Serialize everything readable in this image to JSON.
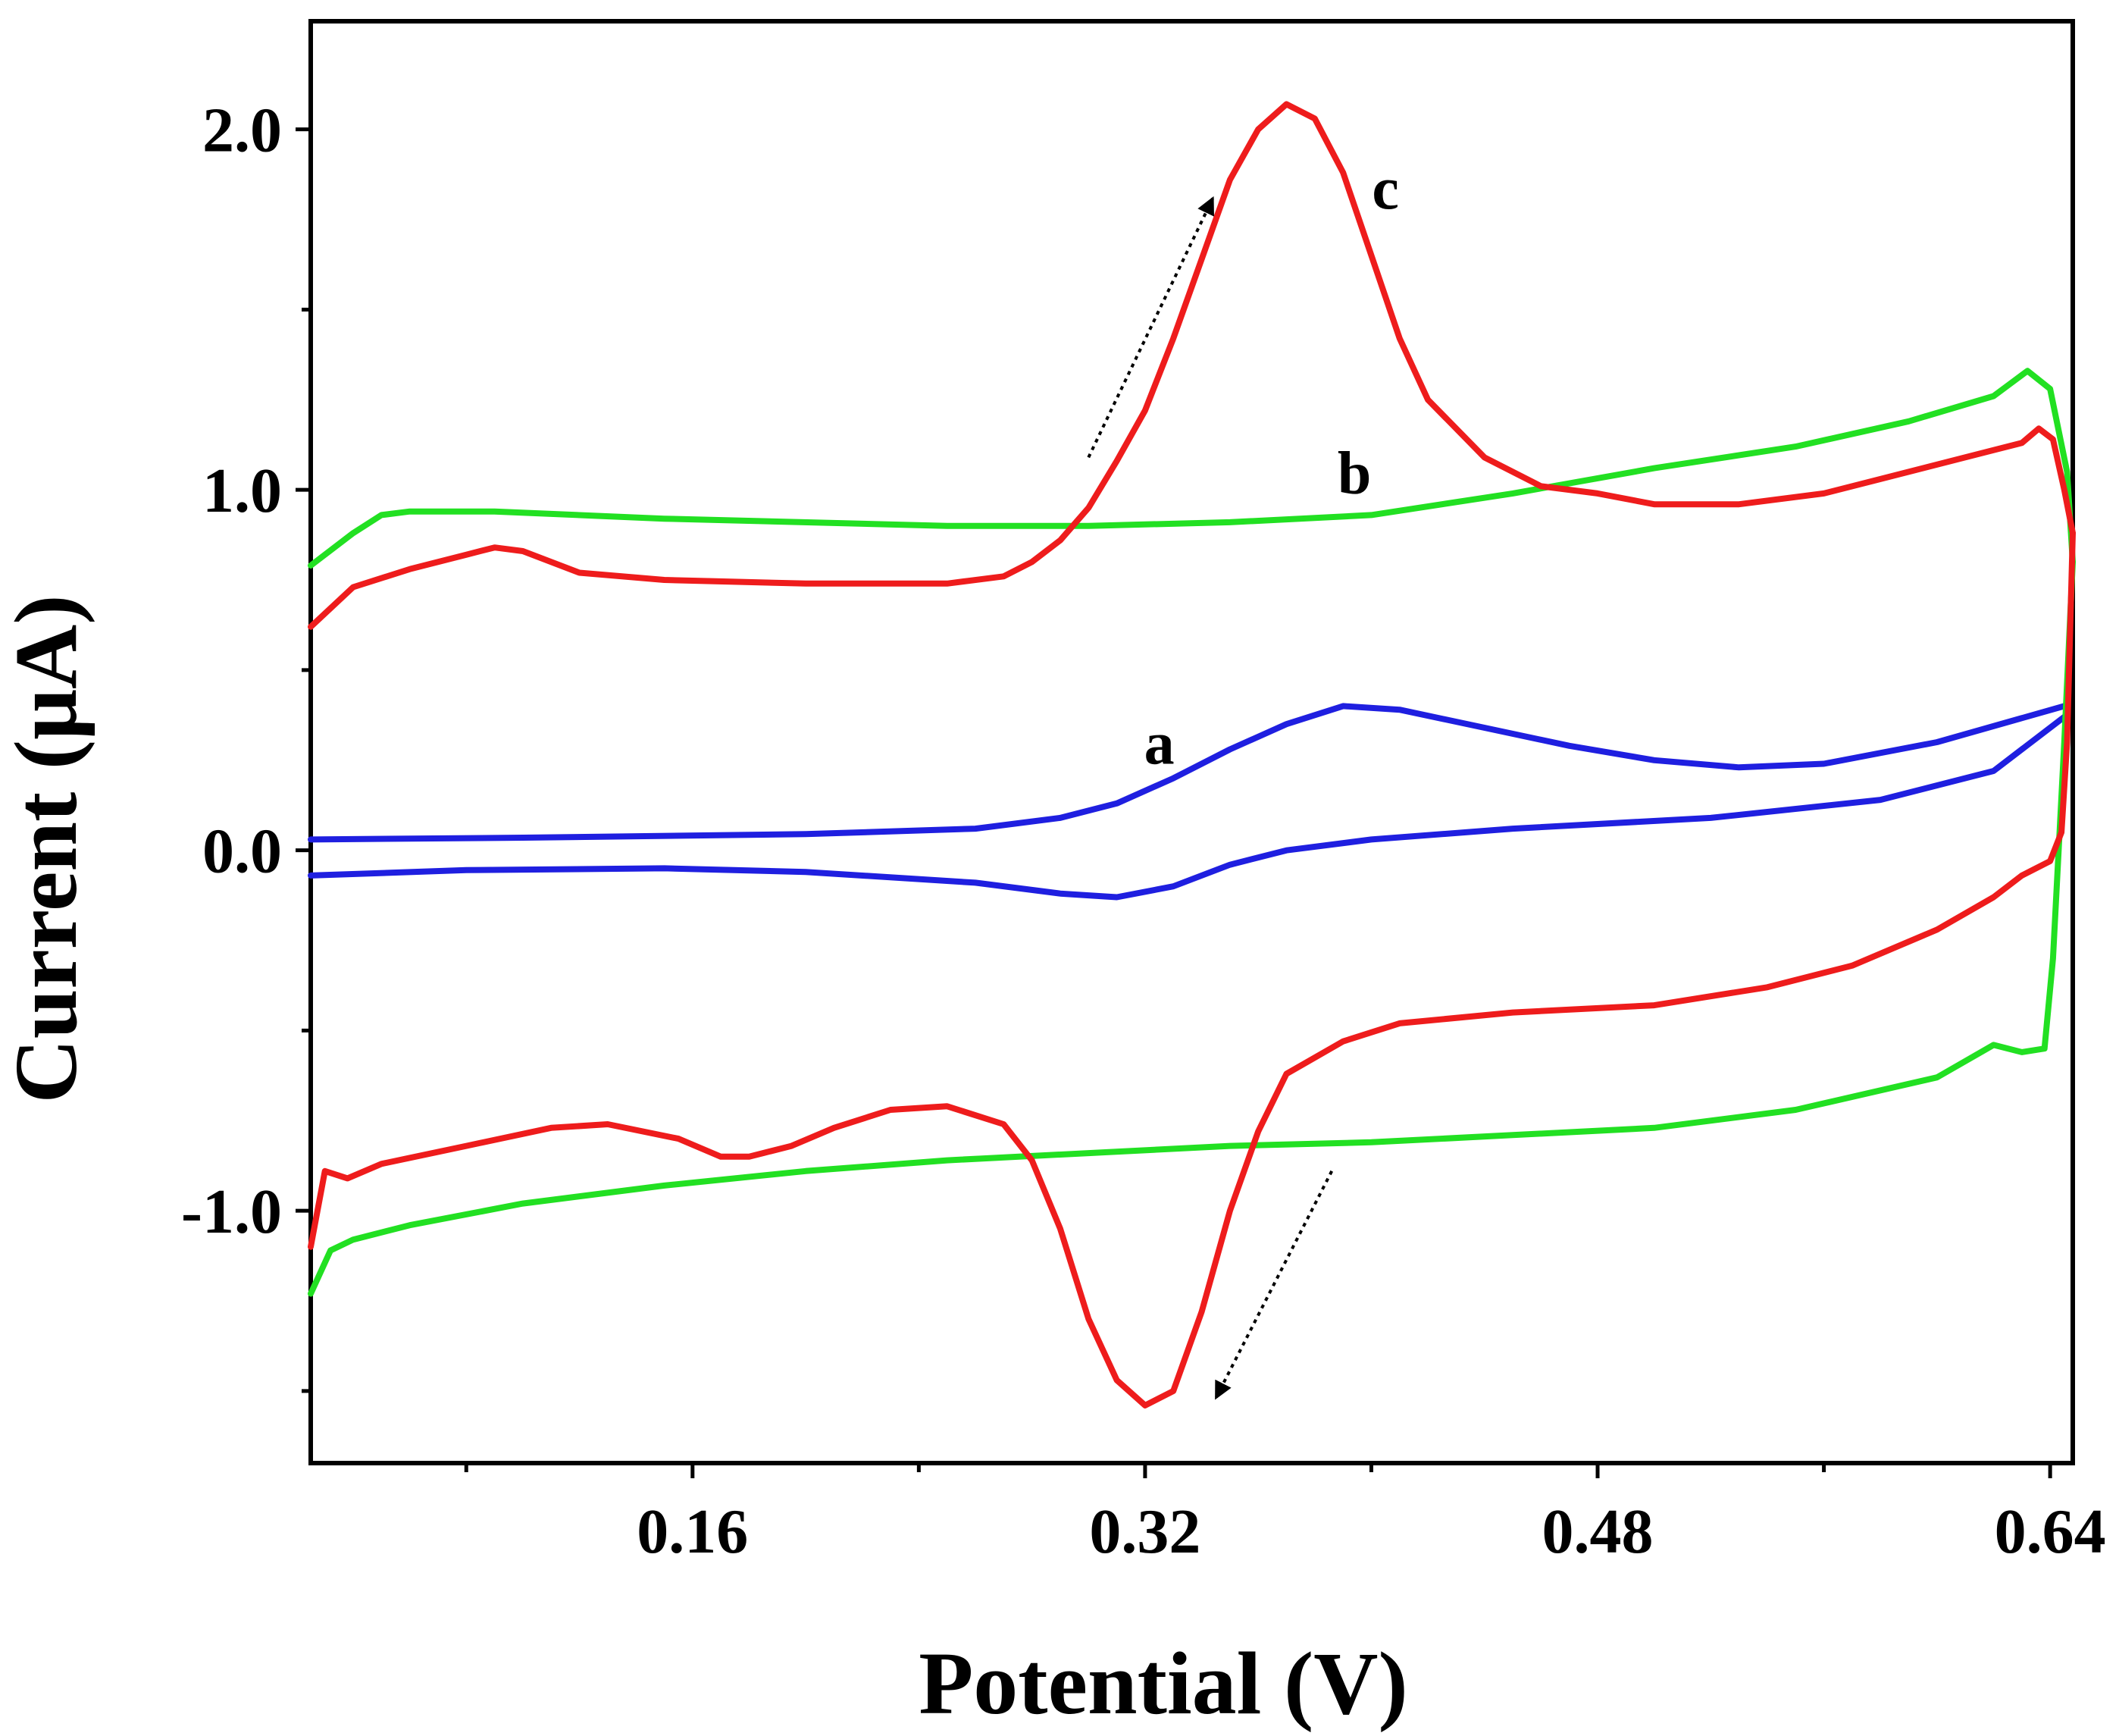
{
  "chart_data": {
    "type": "line",
    "title": "",
    "xlabel": "Potential (V)",
    "ylabel": "Current (μA)",
    "xlim": [
      0.025,
      0.648
    ],
    "ylim": [
      -1.7,
      2.3
    ],
    "x_ticks": [
      0.16,
      0.32,
      0.48,
      0.64
    ],
    "x_tick_labels": [
      "0.16",
      "0.32",
      "0.48",
      "0.64"
    ],
    "x_minor_ticks": [
      0.08,
      0.24,
      0.4,
      0.56
    ],
    "y_ticks": [
      -1.0,
      0.0,
      1.0,
      2.0
    ],
    "y_tick_labels": [
      "-1.0",
      "0.0",
      "1.0",
      "2.0"
    ],
    "y_minor_ticks": [
      -1.5,
      -0.5,
      0.5,
      1.5
    ],
    "grid": false,
    "legend": "none",
    "series": [
      {
        "name": "a",
        "color": "#1f1fe0",
        "forward": [
          [
            0.025,
            0.03
          ],
          [
            0.1,
            0.035
          ],
          [
            0.2,
            0.045
          ],
          [
            0.26,
            0.06
          ],
          [
            0.29,
            0.09
          ],
          [
            0.31,
            0.13
          ],
          [
            0.33,
            0.2
          ],
          [
            0.35,
            0.28
          ],
          [
            0.37,
            0.35
          ],
          [
            0.39,
            0.4
          ],
          [
            0.41,
            0.39
          ],
          [
            0.44,
            0.34
          ],
          [
            0.47,
            0.29
          ],
          [
            0.5,
            0.25
          ],
          [
            0.53,
            0.23
          ],
          [
            0.56,
            0.24
          ],
          [
            0.6,
            0.3
          ],
          [
            0.645,
            0.4
          ]
        ],
        "reverse": [
          [
            0.645,
            0.37
          ],
          [
            0.62,
            0.22
          ],
          [
            0.58,
            0.14
          ],
          [
            0.52,
            0.09
          ],
          [
            0.45,
            0.06
          ],
          [
            0.4,
            0.03
          ],
          [
            0.37,
            0.0
          ],
          [
            0.35,
            -0.04
          ],
          [
            0.33,
            -0.1
          ],
          [
            0.31,
            -0.13
          ],
          [
            0.29,
            -0.12
          ],
          [
            0.26,
            -0.09
          ],
          [
            0.2,
            -0.06
          ],
          [
            0.15,
            -0.05
          ],
          [
            0.08,
            -0.055
          ],
          [
            0.025,
            -0.07
          ]
        ]
      },
      {
        "name": "b",
        "color": "#22e022",
        "forward": [
          [
            0.025,
            0.79
          ],
          [
            0.04,
            0.88
          ],
          [
            0.05,
            0.93
          ],
          [
            0.06,
            0.94
          ],
          [
            0.09,
            0.94
          ],
          [
            0.15,
            0.92
          ],
          [
            0.25,
            0.9
          ],
          [
            0.3,
            0.9
          ],
          [
            0.35,
            0.91
          ],
          [
            0.4,
            0.93
          ],
          [
            0.45,
            0.99
          ],
          [
            0.5,
            1.06
          ],
          [
            0.55,
            1.12
          ],
          [
            0.59,
            1.19
          ],
          [
            0.62,
            1.26
          ],
          [
            0.632,
            1.33
          ],
          [
            0.64,
            1.28
          ],
          [
            0.646,
            1.05
          ],
          [
            0.648,
            0.8
          ]
        ],
        "reverse": [
          [
            0.648,
            0.8
          ],
          [
            0.645,
            0.3
          ],
          [
            0.641,
            -0.3
          ],
          [
            0.638,
            -0.55
          ],
          [
            0.63,
            -0.56
          ],
          [
            0.62,
            -0.54
          ],
          [
            0.6,
            -0.63
          ],
          [
            0.55,
            -0.72
          ],
          [
            0.5,
            -0.77
          ],
          [
            0.45,
            -0.79
          ],
          [
            0.4,
            -0.81
          ],
          [
            0.35,
            -0.82
          ],
          [
            0.3,
            -0.84
          ],
          [
            0.25,
            -0.86
          ],
          [
            0.2,
            -0.89
          ],
          [
            0.15,
            -0.93
          ],
          [
            0.1,
            -0.98
          ],
          [
            0.06,
            -1.04
          ],
          [
            0.04,
            -1.08
          ],
          [
            0.032,
            -1.11
          ],
          [
            0.025,
            -1.23
          ]
        ]
      },
      {
        "name": "c",
        "color": "#ee1c1c",
        "forward": [
          [
            0.025,
            0.62
          ],
          [
            0.04,
            0.73
          ],
          [
            0.06,
            0.78
          ],
          [
            0.08,
            0.82
          ],
          [
            0.09,
            0.84
          ],
          [
            0.1,
            0.83
          ],
          [
            0.12,
            0.77
          ],
          [
            0.15,
            0.75
          ],
          [
            0.2,
            0.74
          ],
          [
            0.25,
            0.74
          ],
          [
            0.27,
            0.76
          ],
          [
            0.28,
            0.8
          ],
          [
            0.29,
            0.86
          ],
          [
            0.3,
            0.95
          ],
          [
            0.31,
            1.08
          ],
          [
            0.32,
            1.22
          ],
          [
            0.33,
            1.42
          ],
          [
            0.34,
            1.64
          ],
          [
            0.35,
            1.86
          ],
          [
            0.36,
            2.0
          ],
          [
            0.37,
            2.07
          ],
          [
            0.38,
            2.03
          ],
          [
            0.39,
            1.88
          ],
          [
            0.4,
            1.65
          ],
          [
            0.41,
            1.42
          ],
          [
            0.42,
            1.25
          ],
          [
            0.44,
            1.09
          ],
          [
            0.46,
            1.01
          ],
          [
            0.48,
            0.99
          ],
          [
            0.5,
            0.96
          ],
          [
            0.53,
            0.96
          ],
          [
            0.56,
            0.99
          ],
          [
            0.59,
            1.05
          ],
          [
            0.62,
            1.11
          ],
          [
            0.63,
            1.13
          ],
          [
            0.636,
            1.17
          ],
          [
            0.641,
            1.14
          ],
          [
            0.645,
            1.0
          ],
          [
            0.648,
            0.88
          ]
        ],
        "reverse": [
          [
            0.648,
            0.88
          ],
          [
            0.646,
            0.3
          ],
          [
            0.644,
            0.05
          ],
          [
            0.64,
            -0.03
          ],
          [
            0.63,
            -0.07
          ],
          [
            0.62,
            -0.13
          ],
          [
            0.6,
            -0.22
          ],
          [
            0.57,
            -0.32
          ],
          [
            0.54,
            -0.38
          ],
          [
            0.5,
            -0.43
          ],
          [
            0.45,
            -0.45
          ],
          [
            0.41,
            -0.48
          ],
          [
            0.39,
            -0.53
          ],
          [
            0.37,
            -0.62
          ],
          [
            0.36,
            -0.78
          ],
          [
            0.35,
            -1.0
          ],
          [
            0.34,
            -1.28
          ],
          [
            0.33,
            -1.5
          ],
          [
            0.32,
            -1.54
          ],
          [
            0.31,
            -1.47
          ],
          [
            0.3,
            -1.3
          ],
          [
            0.29,
            -1.05
          ],
          [
            0.28,
            -0.86
          ],
          [
            0.27,
            -0.76
          ],
          [
            0.25,
            -0.71
          ],
          [
            0.23,
            -0.72
          ],
          [
            0.21,
            -0.77
          ],
          [
            0.195,
            -0.82
          ],
          [
            0.18,
            -0.85
          ],
          [
            0.17,
            -0.85
          ],
          [
            0.155,
            -0.8
          ],
          [
            0.13,
            -0.76
          ],
          [
            0.11,
            -0.77
          ],
          [
            0.08,
            -0.82
          ],
          [
            0.05,
            -0.87
          ],
          [
            0.038,
            -0.91
          ],
          [
            0.03,
            -0.89
          ],
          [
            0.025,
            -1.1
          ]
        ]
      }
    ],
    "annotations": [
      {
        "text": "c",
        "x": 0.405,
        "y": 1.78
      },
      {
        "text": "b",
        "x": 0.394,
        "y": 0.99
      },
      {
        "text": "a",
        "x": 0.325,
        "y": 0.24
      }
    ],
    "arrows": [
      {
        "from": [
          0.3,
          1.09
        ],
        "to": [
          0.344,
          1.81
        ],
        "style": "dotted"
      },
      {
        "from": [
          0.386,
          -0.89
        ],
        "to": [
          0.345,
          -1.52
        ],
        "style": "dotted"
      }
    ]
  }
}
